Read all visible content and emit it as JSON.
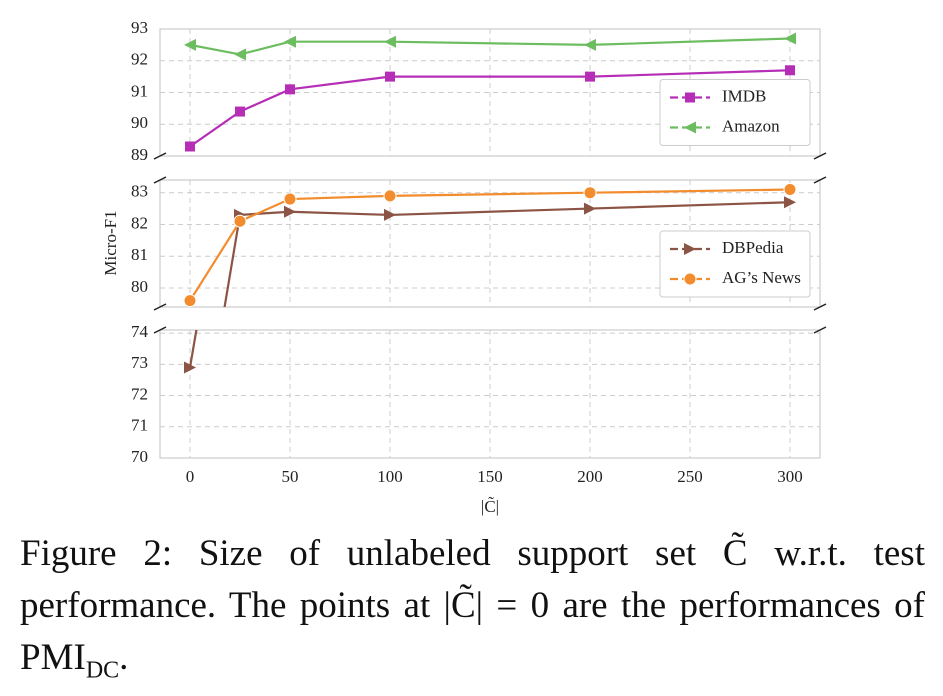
{
  "chart_data": {
    "type": "line",
    "x": [
      0,
      25,
      50,
      100,
      200,
      300
    ],
    "xlim": [
      -15,
      315
    ],
    "xticks": [
      0,
      50,
      100,
      150,
      200,
      250,
      300
    ],
    "xlabel": "|C̃|",
    "ylabel": "Micro-F1",
    "grid": true,
    "panels": [
      {
        "ylim": [
          89,
          93
        ],
        "yticks": [
          89,
          90,
          91,
          92,
          93
        ],
        "legend": "center right"
      },
      {
        "ylim": [
          79.4,
          83.4
        ],
        "yticks": [
          80,
          81,
          82,
          83
        ],
        "legend": "lower right"
      },
      {
        "ylim": [
          70,
          74.1
        ],
        "yticks": [
          70,
          71,
          72,
          73,
          74
        ]
      }
    ],
    "series": [
      {
        "name": "IMDB",
        "color": "#b52eb5",
        "marker": "square",
        "legend_panel": 0,
        "values": [
          89.3,
          90.4,
          91.1,
          91.5,
          91.5,
          91.7
        ]
      },
      {
        "name": "Amazon",
        "color": "#6cbd5f",
        "marker": "triangle-left",
        "legend_panel": 0,
        "values": [
          92.5,
          92.2,
          92.6,
          92.6,
          92.5,
          92.7
        ]
      },
      {
        "name": "DBPedia",
        "color": "#8c5444",
        "marker": "triangle-right",
        "legend_panel": 1,
        "values": [
          72.9,
          82.3,
          82.4,
          82.3,
          82.5,
          82.7
        ]
      },
      {
        "name": "AG’s News",
        "color": "#f28c2c",
        "marker": "circle",
        "legend_panel": 1,
        "values": [
          79.6,
          82.1,
          82.8,
          82.9,
          83.0,
          83.1
        ]
      }
    ]
  },
  "caption": {
    "text": "Figure 2: Size of unlabeled support set C̃ w.r.t. test performance. The points at |C̃| = 0 are the performances of PMI",
    "subscript": "DC",
    "end": "."
  }
}
